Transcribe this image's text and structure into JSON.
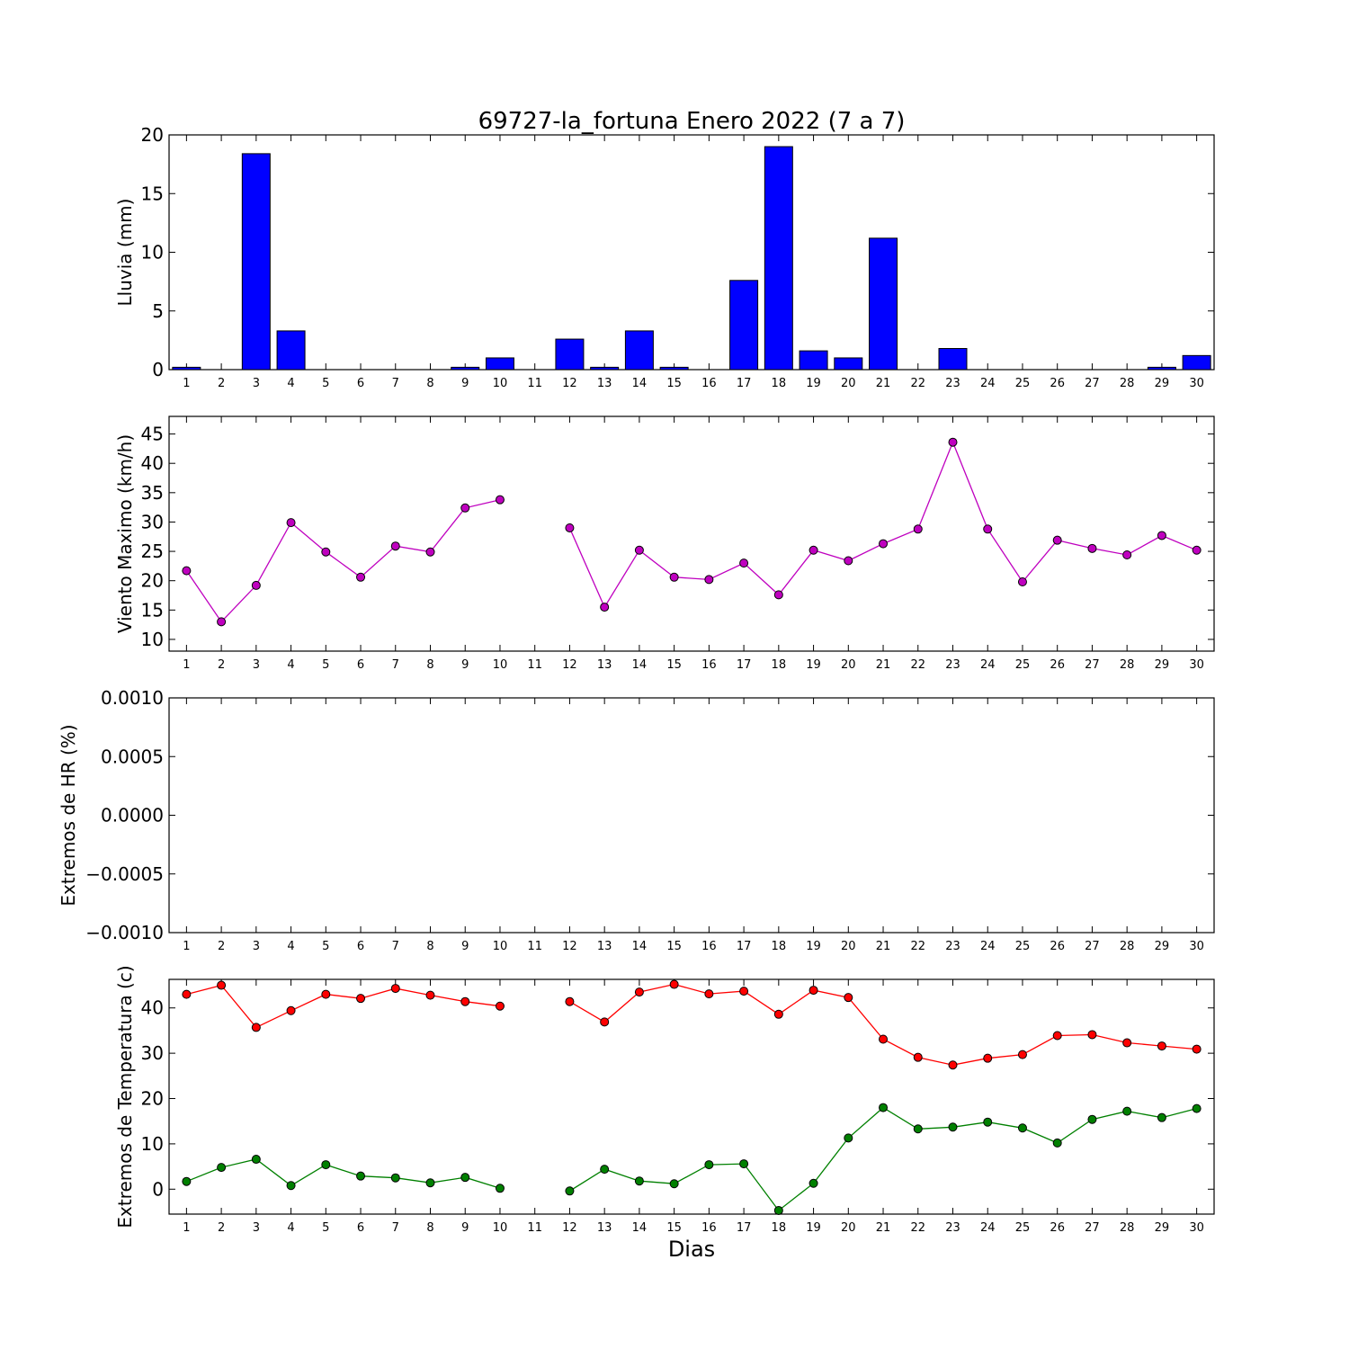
{
  "chart_data": {
    "title": "69727-la_fortuna Enero 2022  (7 a 7)",
    "xlabel": "Dias",
    "days": [
      "1",
      "2",
      "3",
      "4",
      "5",
      "6",
      "7",
      "8",
      "9",
      "10",
      "11",
      "12",
      "13",
      "14",
      "15",
      "16",
      "17",
      "18",
      "19",
      "20",
      "21",
      "22",
      "23",
      "24",
      "25",
      "26",
      "27",
      "28",
      "29",
      "30"
    ],
    "panels": [
      {
        "type": "bar",
        "ylabel": "Lluvia (mm)",
        "ylim": [
          0,
          20
        ],
        "yticks": [
          0,
          5,
          10,
          15,
          20
        ],
        "ytick_labels": [
          "0",
          "5",
          "10",
          "15",
          "20"
        ],
        "series": [
          {
            "color": "#0000ff",
            "values": [
              0.2,
              0,
              18.4,
              3.3,
              0,
              0,
              0,
              0,
              0.2,
              1.0,
              0,
              2.6,
              0.2,
              3.3,
              0.2,
              0,
              7.6,
              19.0,
              1.6,
              1.0,
              11.2,
              0,
              1.8,
              0,
              0,
              0,
              0,
              0,
              0.2,
              1.2
            ]
          }
        ]
      },
      {
        "type": "line",
        "ylabel": "Viento Maximo (km/h)",
        "ylim": [
          8,
          48
        ],
        "yticks": [
          10,
          15,
          20,
          25,
          30,
          35,
          40,
          45
        ],
        "ytick_labels": [
          "10",
          "15",
          "20",
          "25",
          "30",
          "35",
          "40",
          "45"
        ],
        "series": [
          {
            "color": "#bf00bf",
            "values": [
              21.7,
              13.0,
              19.2,
              29.9,
              24.9,
              20.6,
              25.9,
              24.9,
              32.4,
              33.8,
              null,
              29.0,
              15.5,
              25.2,
              20.6,
              20.2,
              23.0,
              17.6,
              25.2,
              23.4,
              26.3,
              28.8,
              43.6,
              28.8,
              19.8,
              26.9,
              25.5,
              24.4,
              27.7,
              25.2
            ]
          }
        ]
      },
      {
        "type": "line",
        "ylabel": "Extremos de HR (%)",
        "ylim": [
          -0.001,
          0.001
        ],
        "yticks": [
          -0.001,
          -0.0005,
          0,
          0.0005,
          0.001
        ],
        "ytick_labels": [
          "−0.0010",
          "−0.0005",
          "0.0000",
          "0.0005",
          "0.0010"
        ],
        "series": []
      },
      {
        "type": "line",
        "ylabel": "Extremos de Temperatura (c)",
        "ylim": [
          -5.5,
          46.3
        ],
        "yticks": [
          0,
          10,
          20,
          30,
          40
        ],
        "ytick_labels": [
          "0",
          "10",
          "20",
          "30",
          "40"
        ],
        "series": [
          {
            "color": "#ff0000",
            "values": [
              43.0,
              45.0,
              35.7,
              39.4,
              43.0,
              42.1,
              44.3,
              42.8,
              41.4,
              40.4,
              null,
              41.4,
              36.9,
              43.5,
              45.2,
              43.1,
              43.7,
              38.6,
              43.9,
              42.3,
              33.1,
              29.1,
              27.4,
              28.9,
              29.7,
              33.9,
              34.1,
              32.3,
              31.6,
              30.9
            ]
          },
          {
            "color": "#008000",
            "values": [
              1.7,
              4.8,
              6.6,
              0.8,
              5.4,
              2.9,
              2.5,
              1.4,
              2.6,
              0.2,
              null,
              -0.4,
              4.4,
              1.8,
              1.2,
              5.4,
              5.6,
              -4.7,
              1.3,
              11.3,
              18.0,
              13.3,
              13.7,
              14.8,
              13.5,
              10.2,
              15.4,
              17.2,
              15.8,
              17.8
            ]
          }
        ]
      }
    ]
  }
}
